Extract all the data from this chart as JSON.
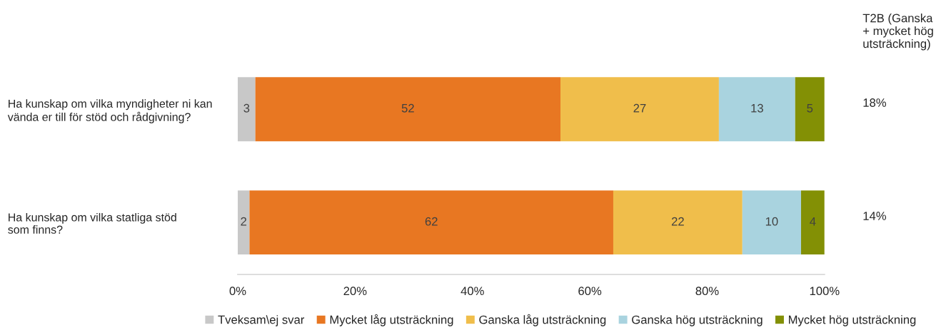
{
  "chart_data": {
    "type": "bar",
    "orientation": "horizontal",
    "stacked": true,
    "categories": [
      "Ha kunskap om vilka myndigheter ni kan\nvända er till för stöd och rådgivning?",
      "Ha kunskap om vilka statliga stöd\nsom finns?"
    ],
    "series": [
      {
        "name": "Tveksam\\ej svar",
        "color": "#c8c8c8",
        "values": [
          3,
          2
        ]
      },
      {
        "name": "Mycket låg utsträckning",
        "color": "#e87722",
        "values": [
          52,
          62
        ]
      },
      {
        "name": "Ganska låg utsträckning",
        "color": "#f0be4b",
        "values": [
          27,
          22
        ]
      },
      {
        "name": "Ganska hög utsträckning",
        "color": "#a9d3df",
        "values": [
          13,
          10
        ]
      },
      {
        "name": "Mycket hög utsträckning",
        "color": "#839005",
        "values": [
          5,
          4
        ]
      }
    ],
    "xlim": [
      0,
      100
    ],
    "xticks": [
      {
        "value": 0,
        "label": "0%"
      },
      {
        "value": 20,
        "label": "20%"
      },
      {
        "value": 40,
        "label": "40%"
      },
      {
        "value": 60,
        "label": "60%"
      },
      {
        "value": 80,
        "label": "80%"
      },
      {
        "value": 100,
        "label": "100%"
      }
    ],
    "data_labels": true,
    "legend": "bottom",
    "grid": false,
    "annotations": [
      "T2B (Ganska\n+ mycket hög\nutsträckning)",
      "18%",
      "14%"
    ]
  }
}
